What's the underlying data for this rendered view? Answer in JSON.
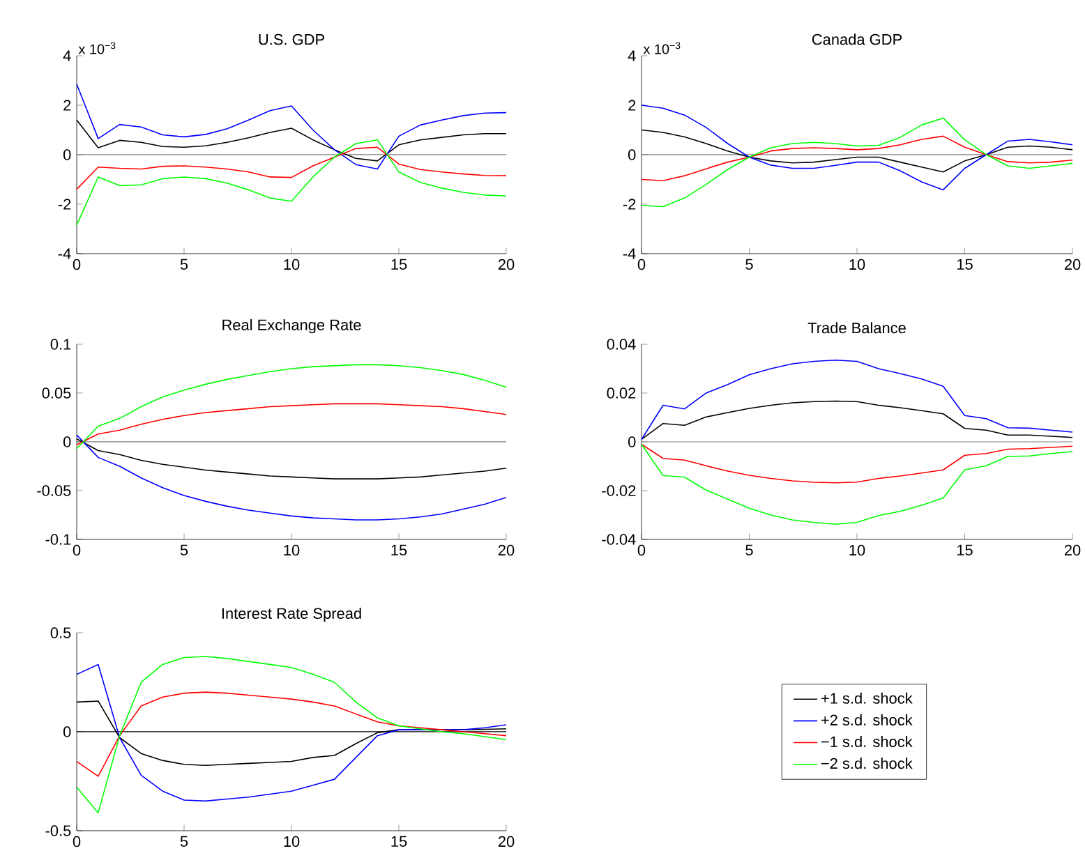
{
  "chart_data": [
    {
      "type": "line",
      "title": "U.S. GDP",
      "annotations": [
        "x 10$^{−3}$"
      ],
      "x": [
        0,
        1,
        2,
        3,
        4,
        5,
        6,
        7,
        8,
        9,
        10,
        11,
        12,
        13,
        14,
        15,
        16,
        17,
        18,
        19,
        20
      ],
      "xlim": [
        0,
        20
      ],
      "xticks": [
        0,
        5,
        10,
        15,
        20
      ],
      "ylim": [
        -4,
        4
      ],
      "yticks": [
        -4,
        -2,
        0,
        2,
        4
      ],
      "ref_lines": [
        {
          "axis": "y",
          "value": 0,
          "color": "#808080"
        }
      ],
      "series": [
        {
          "color": "#000000",
          "values": [
            1.4,
            0.28,
            0.58,
            0.5,
            0.33,
            0.3,
            0.36,
            0.5,
            0.68,
            0.9,
            1.07,
            0.6,
            0.2,
            -0.15,
            -0.25,
            0.4,
            0.6,
            0.7,
            0.8,
            0.85,
            0.85
          ]
        },
        {
          "color": "#0000ff",
          "values": [
            2.85,
            0.65,
            1.22,
            1.12,
            0.8,
            0.72,
            0.82,
            1.05,
            1.4,
            1.78,
            1.97,
            1.0,
            0.2,
            -0.4,
            -0.58,
            0.75,
            1.2,
            1.4,
            1.58,
            1.68,
            1.7
          ]
        },
        {
          "color": "#ff0000",
          "values": [
            -1.4,
            -0.5,
            -0.55,
            -0.58,
            -0.47,
            -0.45,
            -0.5,
            -0.58,
            -0.7,
            -0.9,
            -0.92,
            -0.45,
            -0.1,
            0.25,
            0.3,
            -0.38,
            -0.6,
            -0.7,
            -0.78,
            -0.84,
            -0.85
          ]
        },
        {
          "color": "#00ff00",
          "values": [
            -2.85,
            -0.9,
            -1.25,
            -1.22,
            -0.97,
            -0.9,
            -0.97,
            -1.15,
            -1.42,
            -1.75,
            -1.88,
            -0.9,
            -0.1,
            0.45,
            0.6,
            -0.7,
            -1.12,
            -1.35,
            -1.52,
            -1.63,
            -1.67
          ]
        }
      ]
    },
    {
      "type": "line",
      "title": "Canada GDP",
      "annotations": [
        "x 10$^{−3}$"
      ],
      "x": [
        0,
        1,
        2,
        3,
        4,
        5,
        6,
        7,
        8,
        9,
        10,
        11,
        12,
        13,
        14,
        15,
        16,
        17,
        18,
        19,
        20
      ],
      "xlim": [
        0,
        20
      ],
      "xticks": [
        0,
        5,
        10,
        15,
        20
      ],
      "ylim": [
        -4,
        4
      ],
      "yticks": [
        -4,
        -2,
        0,
        2,
        4
      ],
      "ref_lines": [
        {
          "axis": "y",
          "value": 0,
          "color": "#808080"
        }
      ],
      "series": [
        {
          "color": "#000000",
          "values": [
            1.0,
            0.9,
            0.72,
            0.45,
            0.15,
            -0.1,
            -0.25,
            -0.33,
            -0.3,
            -0.2,
            -0.1,
            -0.1,
            -0.3,
            -0.5,
            -0.7,
            -0.25,
            0.0,
            0.3,
            0.35,
            0.3,
            0.2
          ]
        },
        {
          "color": "#0000ff",
          "values": [
            2.0,
            1.88,
            1.6,
            1.1,
            0.45,
            -0.1,
            -0.42,
            -0.55,
            -0.55,
            -0.43,
            -0.3,
            -0.3,
            -0.65,
            -1.1,
            -1.42,
            -0.55,
            0.0,
            0.55,
            0.62,
            0.52,
            0.4
          ]
        },
        {
          "color": "#ff0000",
          "values": [
            -1.0,
            -1.05,
            -0.85,
            -0.57,
            -0.3,
            -0.1,
            0.15,
            0.25,
            0.28,
            0.25,
            0.2,
            0.25,
            0.4,
            0.62,
            0.75,
            0.3,
            0.0,
            -0.28,
            -0.33,
            -0.3,
            -0.22
          ]
        },
        {
          "color": "#00ff00",
          "values": [
            -2.05,
            -2.1,
            -1.75,
            -1.2,
            -0.6,
            -0.1,
            0.28,
            0.45,
            0.5,
            0.45,
            0.35,
            0.38,
            0.7,
            1.2,
            1.48,
            0.6,
            0.0,
            -0.45,
            -0.55,
            -0.45,
            -0.35
          ]
        }
      ]
    },
    {
      "type": "line",
      "title": "Real Exchange Rate",
      "x": [
        0,
        1,
        2,
        3,
        4,
        5,
        6,
        7,
        8,
        9,
        10,
        11,
        12,
        13,
        14,
        15,
        16,
        17,
        18,
        19,
        20
      ],
      "xlim": [
        0,
        20
      ],
      "xticks": [
        0,
        5,
        10,
        15,
        20
      ],
      "ylim": [
        -0.1,
        0.1
      ],
      "yticks": [
        -0.1,
        -0.05,
        0,
        0.05,
        0.1
      ],
      "ref_lines": [
        {
          "axis": "y",
          "value": 0,
          "color": "#808080"
        }
      ],
      "series": [
        {
          "color": "#000000",
          "values": [
            0.003,
            -0.009,
            -0.013,
            -0.019,
            -0.023,
            -0.026,
            -0.029,
            -0.031,
            -0.033,
            -0.035,
            -0.036,
            -0.037,
            -0.038,
            -0.038,
            -0.038,
            -0.037,
            -0.036,
            -0.034,
            -0.032,
            -0.03,
            -0.027
          ]
        },
        {
          "color": "#0000ff",
          "values": [
            0.007,
            -0.016,
            -0.025,
            -0.037,
            -0.047,
            -0.055,
            -0.061,
            -0.066,
            -0.07,
            -0.073,
            -0.076,
            -0.078,
            -0.079,
            -0.08,
            -0.08,
            -0.079,
            -0.077,
            -0.074,
            -0.069,
            -0.064,
            -0.057
          ]
        },
        {
          "color": "#ff0000",
          "values": [
            -0.003,
            0.008,
            0.012,
            0.018,
            0.023,
            0.027,
            0.03,
            0.032,
            0.034,
            0.036,
            0.037,
            0.038,
            0.039,
            0.039,
            0.039,
            0.038,
            0.037,
            0.036,
            0.034,
            0.031,
            0.028
          ]
        },
        {
          "color": "#00ff00",
          "values": [
            -0.007,
            0.016,
            0.024,
            0.036,
            0.046,
            0.053,
            0.059,
            0.064,
            0.068,
            0.072,
            0.075,
            0.077,
            0.078,
            0.079,
            0.079,
            0.078,
            0.076,
            0.073,
            0.069,
            0.063,
            0.056
          ]
        }
      ]
    },
    {
      "type": "line",
      "title": "Trade Balance",
      "x": [
        0,
        1,
        2,
        3,
        4,
        5,
        6,
        7,
        8,
        9,
        10,
        11,
        12,
        13,
        14,
        15,
        16,
        17,
        18,
        19,
        20
      ],
      "xlim": [
        0,
        20
      ],
      "xticks": [
        0,
        5,
        10,
        15,
        20
      ],
      "ylim": [
        -0.04,
        0.04
      ],
      "yticks": [
        -0.04,
        -0.02,
        0,
        0.02,
        0.04
      ],
      "ref_lines": [
        {
          "axis": "y",
          "value": 0,
          "color": "#808080"
        }
      ],
      "series": [
        {
          "color": "#000000",
          "values": [
            0.001,
            0.0075,
            0.0068,
            0.0102,
            0.012,
            0.0137,
            0.015,
            0.016,
            0.0165,
            0.0167,
            0.0165,
            0.015,
            0.014,
            0.0128,
            0.0115,
            0.0055,
            0.0048,
            0.0028,
            0.0028,
            0.0023,
            0.0018
          ]
        },
        {
          "color": "#0000ff",
          "values": [
            0.001,
            0.015,
            0.0135,
            0.02,
            0.0235,
            0.0275,
            0.03,
            0.032,
            0.033,
            0.0335,
            0.033,
            0.03,
            0.028,
            0.0258,
            0.0228,
            0.0108,
            0.0095,
            0.0058,
            0.0056,
            0.0048,
            0.004
          ]
        },
        {
          "color": "#ff0000",
          "values": [
            -0.001,
            -0.0068,
            -0.0075,
            -0.0098,
            -0.012,
            -0.0137,
            -0.015,
            -0.016,
            -0.0166,
            -0.0168,
            -0.0165,
            -0.015,
            -0.014,
            -0.0128,
            -0.0115,
            -0.0055,
            -0.0048,
            -0.003,
            -0.0028,
            -0.0023,
            -0.0018
          ]
        },
        {
          "color": "#00ff00",
          "values": [
            -0.001,
            -0.0138,
            -0.0145,
            -0.0198,
            -0.0235,
            -0.0272,
            -0.03,
            -0.032,
            -0.033,
            -0.0338,
            -0.033,
            -0.0302,
            -0.0285,
            -0.026,
            -0.023,
            -0.0115,
            -0.0098,
            -0.006,
            -0.0058,
            -0.0048,
            -0.004
          ]
        }
      ]
    },
    {
      "type": "line",
      "title": "Interest Rate Spread",
      "legend": "right",
      "x": [
        0,
        1,
        2,
        3,
        4,
        5,
        6,
        7,
        8,
        9,
        10,
        11,
        12,
        13,
        14,
        15,
        16,
        17,
        18,
        19,
        20
      ],
      "xlim": [
        0,
        20
      ],
      "xticks": [
        0,
        5,
        10,
        15,
        20
      ],
      "ylim": [
        -0.5,
        0.5
      ],
      "yticks": [
        -0.5,
        0,
        0.5
      ],
      "ref_lines": [
        {
          "axis": "y",
          "value": 0,
          "color": "#000000"
        }
      ],
      "series": [
        {
          "name": "+1 s.d. shock",
          "color": "#000000",
          "values": [
            0.15,
            0.155,
            -0.03,
            -0.11,
            -0.145,
            -0.165,
            -0.17,
            -0.165,
            -0.16,
            -0.155,
            -0.15,
            -0.13,
            -0.12,
            -0.06,
            -0.005,
            0.01,
            0.01,
            0.01,
            0.01,
            0.012,
            0.015
          ]
        },
        {
          "name": "+2 s.d. shock",
          "color": "#0000ff",
          "values": [
            0.29,
            0.34,
            -0.03,
            -0.22,
            -0.3,
            -0.345,
            -0.35,
            -0.34,
            -0.33,
            -0.315,
            -0.3,
            -0.27,
            -0.24,
            -0.13,
            -0.02,
            0.01,
            0.01,
            0.01,
            0.01,
            0.02,
            0.035
          ]
        },
        {
          "name": "−1 s.d. shock",
          "color": "#ff0000",
          "values": [
            -0.15,
            -0.225,
            -0.02,
            0.13,
            0.175,
            0.195,
            0.2,
            0.195,
            0.185,
            0.175,
            0.165,
            0.15,
            0.13,
            0.09,
            0.05,
            0.03,
            0.02,
            0.01,
            0.0,
            -0.01,
            -0.02
          ]
        },
        {
          "name": "−2 s.d. shock",
          "color": "#00ff00",
          "values": [
            -0.28,
            -0.41,
            -0.02,
            0.25,
            0.34,
            0.375,
            0.38,
            0.37,
            0.355,
            0.34,
            0.325,
            0.29,
            0.25,
            0.15,
            0.07,
            0.03,
            0.015,
            0.0,
            -0.01,
            -0.025,
            -0.04
          ]
        }
      ]
    }
  ]
}
